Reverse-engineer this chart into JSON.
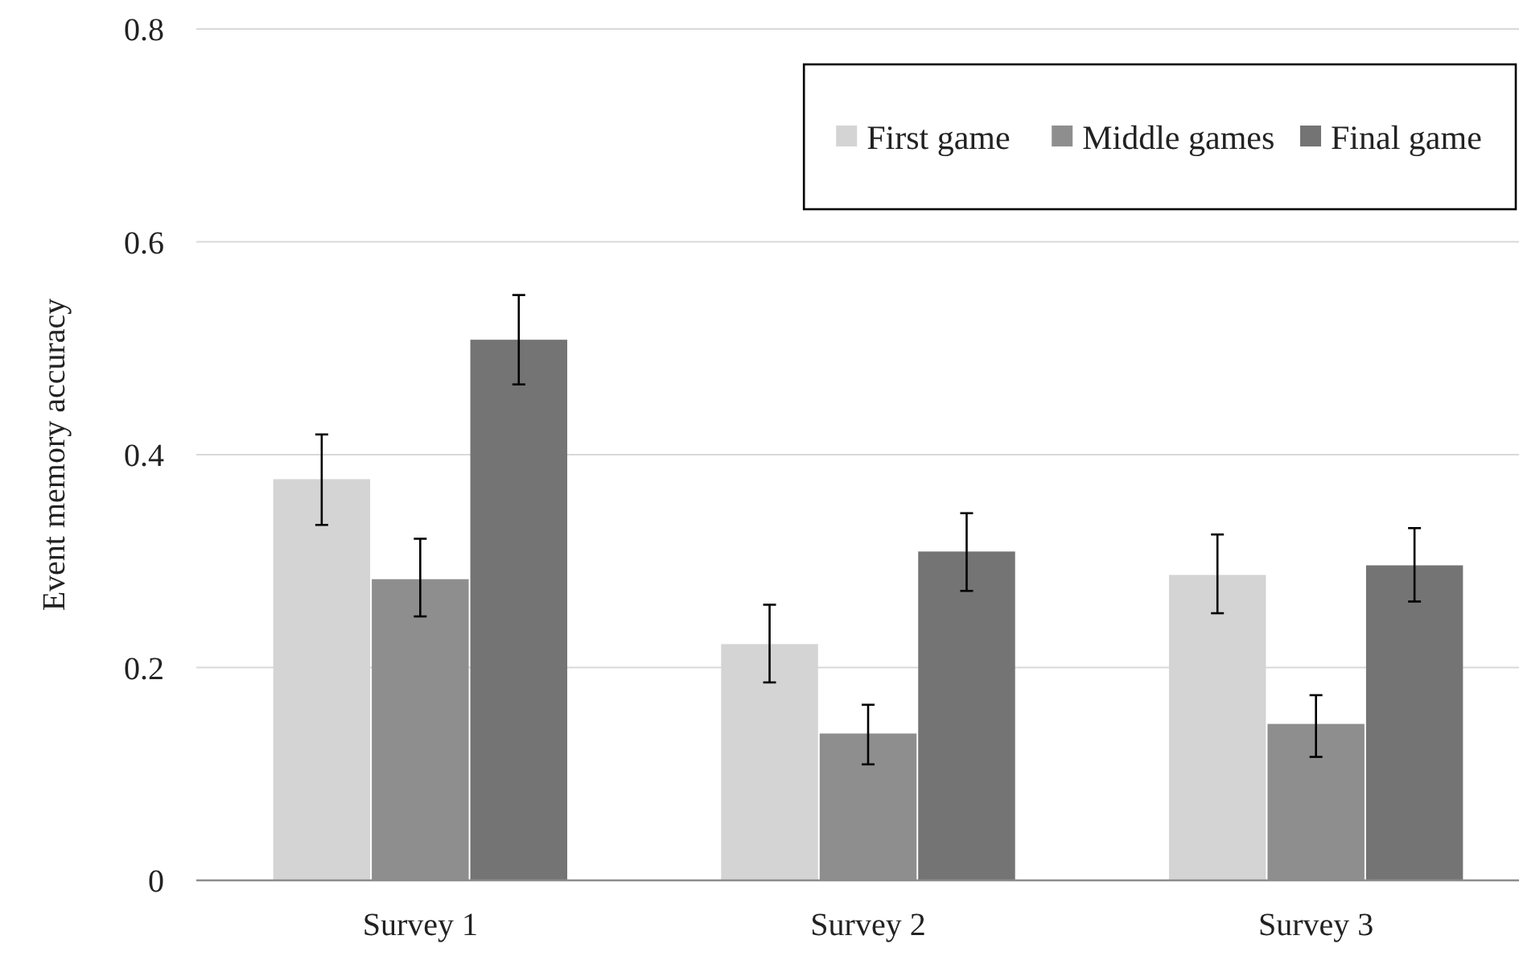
{
  "chart_data": {
    "type": "bar",
    "ylabel": "Event memory accuracy",
    "categories": [
      "Survey 1",
      "Survey 2",
      "Survey 3"
    ],
    "series": [
      {
        "name": "First game",
        "color": "#d4d4d4",
        "values": [
          0.377,
          0.222,
          0.287
        ],
        "errors": [
          [
            0.334,
            0.419
          ],
          [
            0.186,
            0.259
          ],
          [
            0.251,
            0.325
          ]
        ]
      },
      {
        "name": "Middle games",
        "color": "#8e8e8e",
        "values": [
          0.283,
          0.138,
          0.147
        ],
        "errors": [
          [
            0.248,
            0.321
          ],
          [
            0.109,
            0.165
          ],
          [
            0.116,
            0.174
          ]
        ]
      },
      {
        "name": "Final game",
        "color": "#747474",
        "values": [
          0.508,
          0.309,
          0.296
        ],
        "errors": [
          [
            0.466,
            0.55
          ],
          [
            0.272,
            0.345
          ],
          [
            0.262,
            0.331
          ]
        ]
      }
    ],
    "ylim": [
      0,
      0.8
    ],
    "yticks": [
      {
        "value": 0,
        "label": "0"
      },
      {
        "value": 0.2,
        "label": "0.2"
      },
      {
        "value": 0.4,
        "label": "0.4"
      },
      {
        "value": 0.6,
        "label": "0.6"
      },
      {
        "value": 0.8,
        "label": "0.8"
      }
    ],
    "grid": "y",
    "legend": "top right"
  }
}
